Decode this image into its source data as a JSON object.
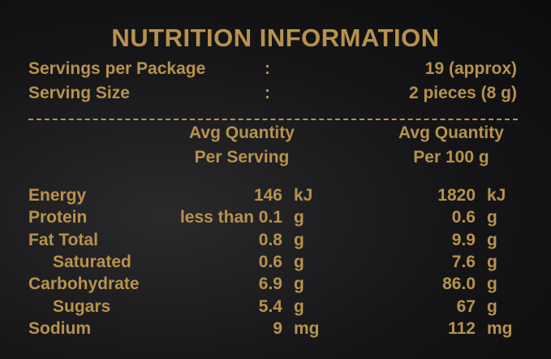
{
  "header": {
    "title": "NUTRITION INFORMATION"
  },
  "servings": [
    {
      "label": "Servings per Package",
      "sep": ":",
      "value": "19 (approx)"
    },
    {
      "label": "Serving Size",
      "sep": ":",
      "value": "2 pieces (8 g)"
    }
  ],
  "table": {
    "columns": [
      {
        "line1": "Avg Quantity",
        "line2": "Per Serving"
      },
      {
        "line1": "Avg Quantity",
        "line2": "Per 100 g"
      }
    ],
    "rows": [
      {
        "name": "Energy",
        "per_serving": "146",
        "unit_serving": "kJ",
        "per_100g": "1820",
        "unit_100g": "kJ",
        "indent": false
      },
      {
        "name": "Protein",
        "per_serving": "less than 0.1",
        "unit_serving": "g",
        "per_100g": "0.6",
        "unit_100g": "g",
        "indent": false
      },
      {
        "name": "Fat Total",
        "per_serving": "0.8",
        "unit_serving": "g",
        "per_100g": "9.9",
        "unit_100g": "g",
        "indent": false
      },
      {
        "name": "Saturated",
        "per_serving": "0.6",
        "unit_serving": "g",
        "per_100g": "7.6",
        "unit_100g": "g",
        "indent": true
      },
      {
        "name": "Carbohydrate",
        "per_serving": "6.9",
        "unit_serving": "g",
        "per_100g": "86.0",
        "unit_100g": "g",
        "indent": false
      },
      {
        "name": "Sugars",
        "per_serving": "5.4",
        "unit_serving": "g",
        "per_100g": "67",
        "unit_100g": "g",
        "indent": true
      },
      {
        "name": "Sodium",
        "per_serving": "9",
        "unit_serving": "mg",
        "per_100g": "112",
        "unit_100g": "mg",
        "indent": false
      }
    ]
  }
}
